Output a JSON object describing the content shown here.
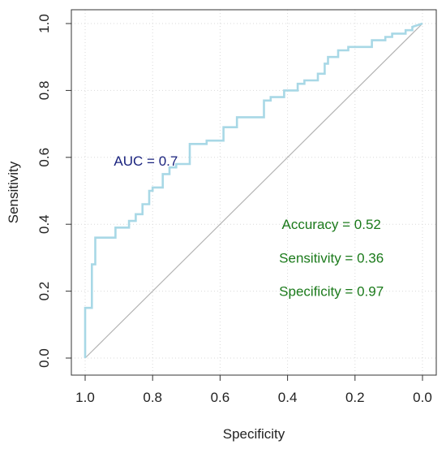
{
  "chart_data": {
    "type": "line",
    "title": "",
    "xlabel": "Specificity",
    "ylabel": "Sensitivity",
    "x_reversed": true,
    "xlim": [
      1.0,
      0.0
    ],
    "ylim": [
      0.0,
      1.0
    ],
    "x_ticks": [
      "1.0",
      "0.8",
      "0.6",
      "0.4",
      "0.2",
      "0.0"
    ],
    "y_ticks": [
      "0.0",
      "0.2",
      "0.4",
      "0.6",
      "0.8",
      "1.0"
    ],
    "grid": true,
    "series": [
      {
        "color": "#a8d8e6",
        "x": [
          1.0,
          1.0,
          0.98,
          0.98,
          0.97,
          0.97,
          0.91,
          0.91,
          0.87,
          0.87,
          0.85,
          0.85,
          0.83,
          0.83,
          0.81,
          0.81,
          0.8,
          0.8,
          0.77,
          0.77,
          0.75,
          0.75,
          0.73,
          0.73,
          0.69,
          0.69,
          0.64,
          0.64,
          0.59,
          0.59,
          0.55,
          0.55,
          0.47,
          0.47,
          0.45,
          0.45,
          0.41,
          0.41,
          0.37,
          0.37,
          0.35,
          0.35,
          0.31,
          0.31,
          0.29,
          0.29,
          0.28,
          0.28,
          0.25,
          0.25,
          0.22,
          0.22,
          0.15,
          0.15,
          0.11,
          0.11,
          0.09,
          0.09,
          0.05,
          0.05,
          0.03,
          0.03,
          0.0
        ],
        "y": [
          0.0,
          0.15,
          0.15,
          0.28,
          0.28,
          0.36,
          0.36,
          0.39,
          0.39,
          0.41,
          0.41,
          0.43,
          0.43,
          0.46,
          0.46,
          0.5,
          0.5,
          0.51,
          0.51,
          0.55,
          0.55,
          0.57,
          0.57,
          0.58,
          0.58,
          0.64,
          0.64,
          0.65,
          0.65,
          0.69,
          0.69,
          0.72,
          0.72,
          0.77,
          0.77,
          0.78,
          0.78,
          0.8,
          0.8,
          0.82,
          0.82,
          0.83,
          0.83,
          0.85,
          0.85,
          0.88,
          0.88,
          0.9,
          0.9,
          0.92,
          0.92,
          0.93,
          0.93,
          0.95,
          0.95,
          0.96,
          0.96,
          0.97,
          0.97,
          0.98,
          0.98,
          0.99,
          1.0
        ]
      },
      {
        "color": "#b3b3b3",
        "x": [
          1.0,
          0.0
        ],
        "y": [
          0.0,
          1.0
        ]
      }
    ],
    "annotations": [
      {
        "text": "AUC =  0.7",
        "x": 0.82,
        "y": 0.59,
        "color": "#1a237e"
      },
      {
        "text": "Accuracy =  0.52",
        "x": 0.27,
        "y": 0.4,
        "color": "#1b7a1b"
      },
      {
        "text": "Sensitivity = 0.36",
        "x": 0.27,
        "y": 0.3,
        "color": "#1b7a1b"
      },
      {
        "text": "Specificity = 0.97",
        "x": 0.27,
        "y": 0.2,
        "color": "#1b7a1b"
      }
    ]
  }
}
